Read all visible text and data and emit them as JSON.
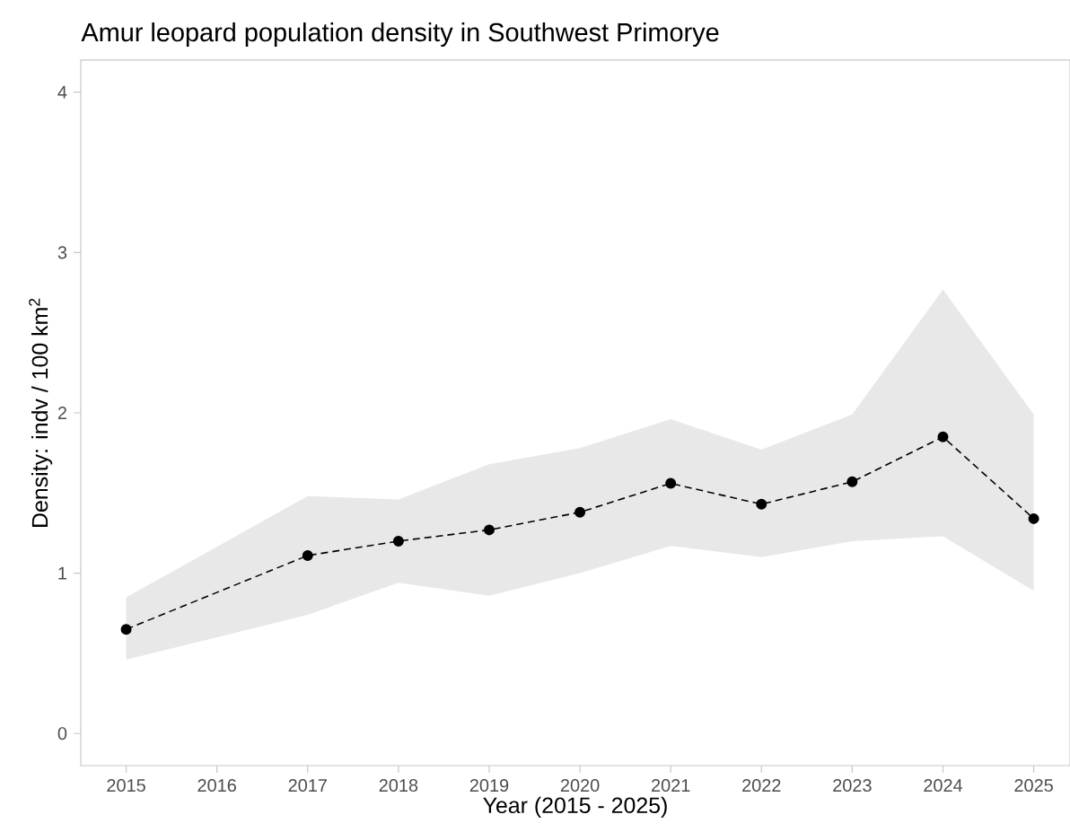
{
  "chart_data": {
    "type": "line",
    "title": "Amur leopard population density in Southwest Primorye",
    "xlabel": "Year (2015 - 2025)",
    "ylabel": "Density: indv / 100 km$^{2}$",
    "x": [
      2015,
      2017,
      2018,
      2019,
      2020,
      2021,
      2022,
      2023,
      2024,
      2025
    ],
    "series": [
      {
        "color": "#000000",
        "values": [
          0.65,
          1.11,
          1.2,
          1.27,
          1.38,
          1.56,
          1.43,
          1.57,
          1.85,
          1.34
        ],
        "lower": [
          0.46,
          0.74,
          0.94,
          0.86,
          1.0,
          1.17,
          1.1,
          1.2,
          1.23,
          0.89
        ],
        "upper": [
          0.85,
          1.48,
          1.46,
          1.68,
          1.78,
          1.96,
          1.77,
          1.99,
          2.77,
          1.99
        ]
      }
    ],
    "xlim": [
      2014.5,
      2025.4
    ],
    "ylim": [
      -0.2,
      4.2
    ],
    "xticks": [
      2015,
      2016,
      2017,
      2018,
      2019,
      2020,
      2021,
      2022,
      2023,
      2024,
      2025
    ],
    "yticks": [
      0,
      1,
      2,
      3,
      4
    ],
    "grid": false,
    "legend": false,
    "marker": "circle",
    "line_style": "dashed"
  }
}
